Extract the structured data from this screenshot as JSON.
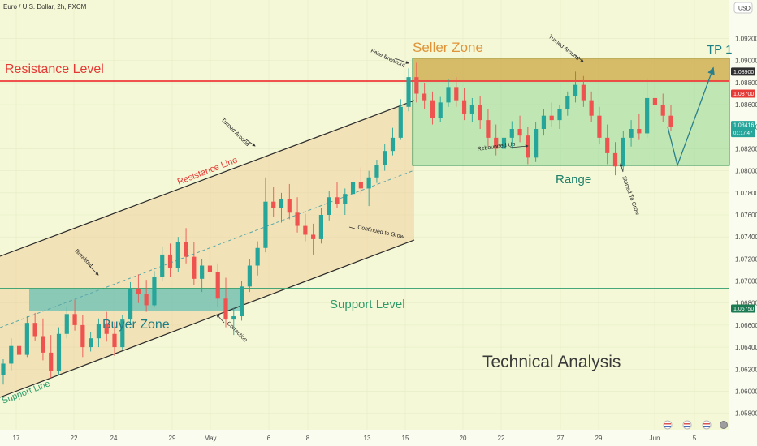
{
  "header": {
    "symbol_title": "Euro / U.S. Dollar, 2h, FXCM",
    "currency": "USD"
  },
  "chart_data": {
    "type": "candlestick",
    "title": "Euro / U.S. Dollar, 2h, FXCM",
    "ylim": [
      1.0565,
      1.0955
    ],
    "y_ticks": [
      "1.09200",
      "1.09000",
      "1.08800",
      "1.08600",
      "1.08400",
      "1.08200",
      "1.08000",
      "1.07800",
      "1.07600",
      "1.07400",
      "1.07200",
      "1.07000",
      "1.06800",
      "1.06600",
      "1.06400",
      "1.06200",
      "1.06000",
      "1.05800"
    ],
    "x_ticks": [
      "17",
      "22",
      "24",
      "29",
      "May",
      "6",
      "8",
      "13",
      "15",
      "20",
      "22",
      "27",
      "29",
      "Jun",
      "5"
    ],
    "price_labels": [
      {
        "value": 1.089,
        "text": "1.08900",
        "color": "#2f2f2f"
      },
      {
        "value": 1.087,
        "text": "1.08700",
        "color": "#e53935"
      },
      {
        "value": 1.08416,
        "text": "1.08416",
        "sub": "01:17:47",
        "color": "#26a69a"
      },
      {
        "value": 1.0675,
        "text": "1.06750",
        "color": "#1b7a52"
      }
    ],
    "levels": [
      {
        "name": "Resistance Level",
        "value": 1.087,
        "color": "#ef3b3b"
      },
      {
        "name": "Support Level",
        "value": 1.0675,
        "color": "#2e9c6a"
      }
    ],
    "zones": [
      {
        "name": "Seller Zone",
        "from": 1.087,
        "to": 1.0893,
        "color": "#e0a84a"
      },
      {
        "name": "Buyer Zone",
        "from": 1.0653,
        "to": 1.0675,
        "color": "#5fbfb6"
      },
      {
        "name": "Range",
        "from": 1.079,
        "to": 1.0893,
        "color": "#7fd08a"
      }
    ],
    "channel": {
      "upper": "Resistance Line",
      "lower": "Support Line"
    },
    "annotations": [
      {
        "text": "Fake Breakout"
      },
      {
        "text": "Turned Around"
      },
      {
        "text": "Turned Around"
      },
      {
        "text": "Breakout"
      },
      {
        "text": "Correction"
      },
      {
        "text": "Continued to Grow"
      },
      {
        "text": "Rebounded Up"
      },
      {
        "text": "Started To Grow"
      }
    ],
    "target_label": "TP 1",
    "watermark": "Technical Analysis",
    "series": [
      {
        "values": [
          [
            1.0615,
            1.0629,
            1.0606,
            1.0625
          ],
          [
            1.0625,
            1.0648,
            1.0619,
            1.0641
          ],
          [
            1.0641,
            1.0655,
            1.0628,
            1.0633
          ],
          [
            1.0633,
            1.0668,
            1.0631,
            1.0662
          ],
          [
            1.0662,
            1.0671,
            1.0646,
            1.065
          ],
          [
            1.065,
            1.0666,
            1.0628,
            1.0635
          ],
          [
            1.0635,
            1.0651,
            1.0612,
            1.0618
          ],
          [
            1.0618,
            1.0658,
            1.0615,
            1.0652
          ],
          [
            1.0652,
            1.0677,
            1.0648,
            1.067
          ],
          [
            1.067,
            1.0683,
            1.0655,
            1.066
          ],
          [
            1.066,
            1.0669,
            1.0631,
            1.064
          ],
          [
            1.064,
            1.0654,
            1.0636,
            1.0648
          ],
          [
            1.0648,
            1.0666,
            1.064,
            1.0661
          ],
          [
            1.0661,
            1.0672,
            1.0645,
            1.0652
          ],
          [
            1.0652,
            1.0663,
            1.0632,
            1.064
          ],
          [
            1.064,
            1.0669,
            1.0638,
            1.0665
          ],
          [
            1.0665,
            1.0699,
            1.0662,
            1.0693
          ],
          [
            1.0693,
            1.0706,
            1.068,
            1.0688
          ],
          [
            1.0688,
            1.0701,
            1.0672,
            1.0678
          ],
          [
            1.0678,
            1.0709,
            1.0676,
            1.0704
          ],
          [
            1.0704,
            1.0731,
            1.07,
            1.0724
          ],
          [
            1.0724,
            1.0734,
            1.0704,
            1.0712
          ],
          [
            1.0712,
            1.074,
            1.0708,
            1.0735
          ],
          [
            1.0735,
            1.0748,
            1.0716,
            1.0722
          ],
          [
            1.0722,
            1.0735,
            1.0696,
            1.0702
          ],
          [
            1.0702,
            1.072,
            1.069,
            1.0714
          ],
          [
            1.0714,
            1.0732,
            1.07,
            1.0708
          ],
          [
            1.0708,
            1.0716,
            1.0676,
            1.0684
          ],
          [
            1.0684,
            1.0703,
            1.0658,
            1.0665
          ],
          [
            1.0665,
            1.0676,
            1.0651,
            1.0668
          ],
          [
            1.0668,
            1.07,
            1.0664,
            1.0695
          ],
          [
            1.0695,
            1.072,
            1.069,
            1.0714
          ],
          [
            1.0714,
            1.0736,
            1.0705,
            1.073
          ],
          [
            1.073,
            1.0794,
            1.0726,
            1.0772
          ],
          [
            1.0772,
            1.0785,
            1.0758,
            1.0766
          ],
          [
            1.0766,
            1.078,
            1.0753,
            1.0774
          ],
          [
            1.0774,
            1.0788,
            1.0756,
            1.0762
          ],
          [
            1.0762,
            1.0776,
            1.0744,
            1.075
          ],
          [
            1.075,
            1.0761,
            1.0736,
            1.0742
          ],
          [
            1.0742,
            1.0752,
            1.0724,
            1.0738
          ],
          [
            1.0738,
            1.0766,
            1.0734,
            1.076
          ],
          [
            1.076,
            1.0782,
            1.0755,
            1.0776
          ],
          [
            1.0776,
            1.079,
            1.0766,
            1.077
          ],
          [
            1.077,
            1.0784,
            1.076,
            1.0779
          ],
          [
            1.0779,
            1.0796,
            1.0774,
            1.079
          ],
          [
            1.079,
            1.0803,
            1.0779,
            1.0784
          ],
          [
            1.0784,
            1.08,
            1.0768,
            1.0794
          ],
          [
            1.0794,
            1.081,
            1.0789,
            1.0805
          ],
          [
            1.0805,
            1.0824,
            1.08,
            1.0818
          ],
          [
            1.0818,
            1.0839,
            1.0814,
            1.083
          ],
          [
            1.083,
            1.0865,
            1.0828,
            1.0858
          ],
          [
            1.0858,
            1.0893,
            1.0854,
            1.0885
          ],
          [
            1.0885,
            1.0898,
            1.0862,
            1.087
          ],
          [
            1.087,
            1.088,
            1.0856,
            1.0864
          ],
          [
            1.0864,
            1.0872,
            1.0842,
            1.0848
          ],
          [
            1.0848,
            1.0867,
            1.0844,
            1.0862
          ],
          [
            1.0862,
            1.0883,
            1.0858,
            1.0876
          ],
          [
            1.0876,
            1.0885,
            1.0858,
            1.0864
          ],
          [
            1.0864,
            1.0875,
            1.0846,
            1.0852
          ],
          [
            1.0852,
            1.0866,
            1.0844,
            1.086
          ],
          [
            1.086,
            1.0868,
            1.0838,
            1.0846
          ],
          [
            1.0846,
            1.0856,
            1.0822,
            1.083
          ],
          [
            1.083,
            1.0842,
            1.0814,
            1.082
          ],
          [
            1.082,
            1.0836,
            1.081,
            1.083
          ],
          [
            1.083,
            1.0845,
            1.082,
            1.0838
          ],
          [
            1.0838,
            1.085,
            1.0826,
            1.0832
          ],
          [
            1.0832,
            1.084,
            1.0806,
            1.0812
          ],
          [
            1.0812,
            1.0844,
            1.0808,
            1.0838
          ],
          [
            1.0838,
            1.0856,
            1.0832,
            1.085
          ],
          [
            1.085,
            1.0862,
            1.084,
            1.0846
          ],
          [
            1.0846,
            1.086,
            1.0838,
            1.0856
          ],
          [
            1.0856,
            1.0872,
            1.085,
            1.0868
          ],
          [
            1.0868,
            1.089,
            1.0862,
            1.0878
          ],
          [
            1.0878,
            1.0886,
            1.0858,
            1.0864
          ],
          [
            1.0864,
            1.0872,
            1.0844,
            1.085
          ],
          [
            1.085,
            1.0858,
            1.0824,
            1.083
          ],
          [
            1.083,
            1.0842,
            1.0806,
            1.0816
          ],
          [
            1.0816,
            1.0826,
            1.0796,
            1.0804
          ],
          [
            1.0804,
            1.0836,
            1.08,
            1.083
          ],
          [
            1.083,
            1.0846,
            1.0822,
            1.0838
          ],
          [
            1.0838,
            1.0852,
            1.0828,
            1.0834
          ],
          [
            1.0834,
            1.0884,
            1.083,
            1.0866
          ],
          [
            1.0866,
            1.0876,
            1.0852,
            1.086
          ],
          [
            1.086,
            1.087,
            1.0844,
            1.085
          ],
          [
            1.085,
            1.086,
            1.0836,
            1.084
          ]
        ]
      }
    ],
    "projection": [
      1.084,
      1.0805,
      1.0893
    ]
  }
}
